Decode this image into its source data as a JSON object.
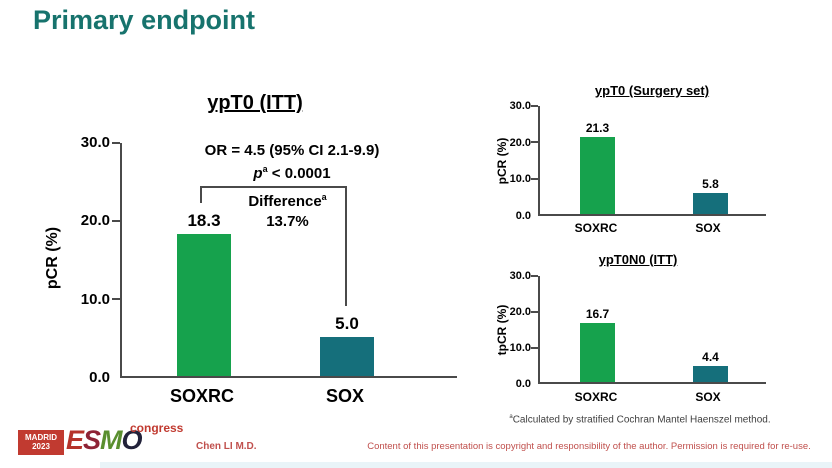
{
  "slide": {
    "title": "Primary endpoint",
    "presenter": "Chen LI M.D.",
    "copyright": "Content of this presentation is copyright and responsibility of the author. Permission is required for re-use.",
    "footnote_marker": "a",
    "footnote": "Calculated by stratified Cochran Mantel Haenszel method."
  },
  "logo": {
    "city": "MADRID",
    "year": "2023",
    "letters": [
      "E",
      "S",
      "M",
      "O"
    ],
    "congress": "congress"
  },
  "colors": {
    "title_teal": "#17736d",
    "bar_green": "#16a24d",
    "bar_teal": "#156f7b",
    "red_text": "#c0504d",
    "logo_red": "#c13a30",
    "axis_gray": "#4a4a4a"
  },
  "chart_data": [
    {
      "type": "bar",
      "title": "ypT0 (ITT)",
      "ylabel": "pCR (%)",
      "categories": [
        "SOXRC",
        "SOX"
      ],
      "values": [
        18.3,
        5.0
      ],
      "value_labels": [
        "18.3",
        "5.0"
      ],
      "ylim": [
        0,
        30
      ],
      "yticks": [
        "30.0",
        "20.0",
        "10.0",
        "0.0"
      ],
      "grid": false,
      "annotations": {
        "or_line": "OR = 4.5 (95% CI 2.1-9.9)",
        "p_italic": "p",
        "p_sup": "a",
        "p_text": " < 0.0001",
        "difference_label": "Difference",
        "difference_sup": "a",
        "difference_value": "13.7%"
      }
    },
    {
      "type": "bar",
      "title": "ypT0 (Surgery set)",
      "ylabel": "pCR (%)",
      "categories": [
        "SOXRC",
        "SOX"
      ],
      "values": [
        21.3,
        5.8
      ],
      "value_labels": [
        "21.3",
        "5.8"
      ],
      "ylim": [
        0,
        30
      ],
      "yticks": [
        "30.0",
        "20.0",
        "10.0",
        "0.0"
      ],
      "grid": false
    },
    {
      "type": "bar",
      "title": "ypT0N0 (ITT)",
      "ylabel": "tpCR (%)",
      "categories": [
        "SOXRC",
        "SOX"
      ],
      "values": [
        16.7,
        4.4
      ],
      "value_labels": [
        "16.7",
        "4.4"
      ],
      "ylim": [
        0,
        30
      ],
      "yticks": [
        "30.0",
        "20.0",
        "10.0",
        "0.0"
      ],
      "grid": false
    }
  ]
}
